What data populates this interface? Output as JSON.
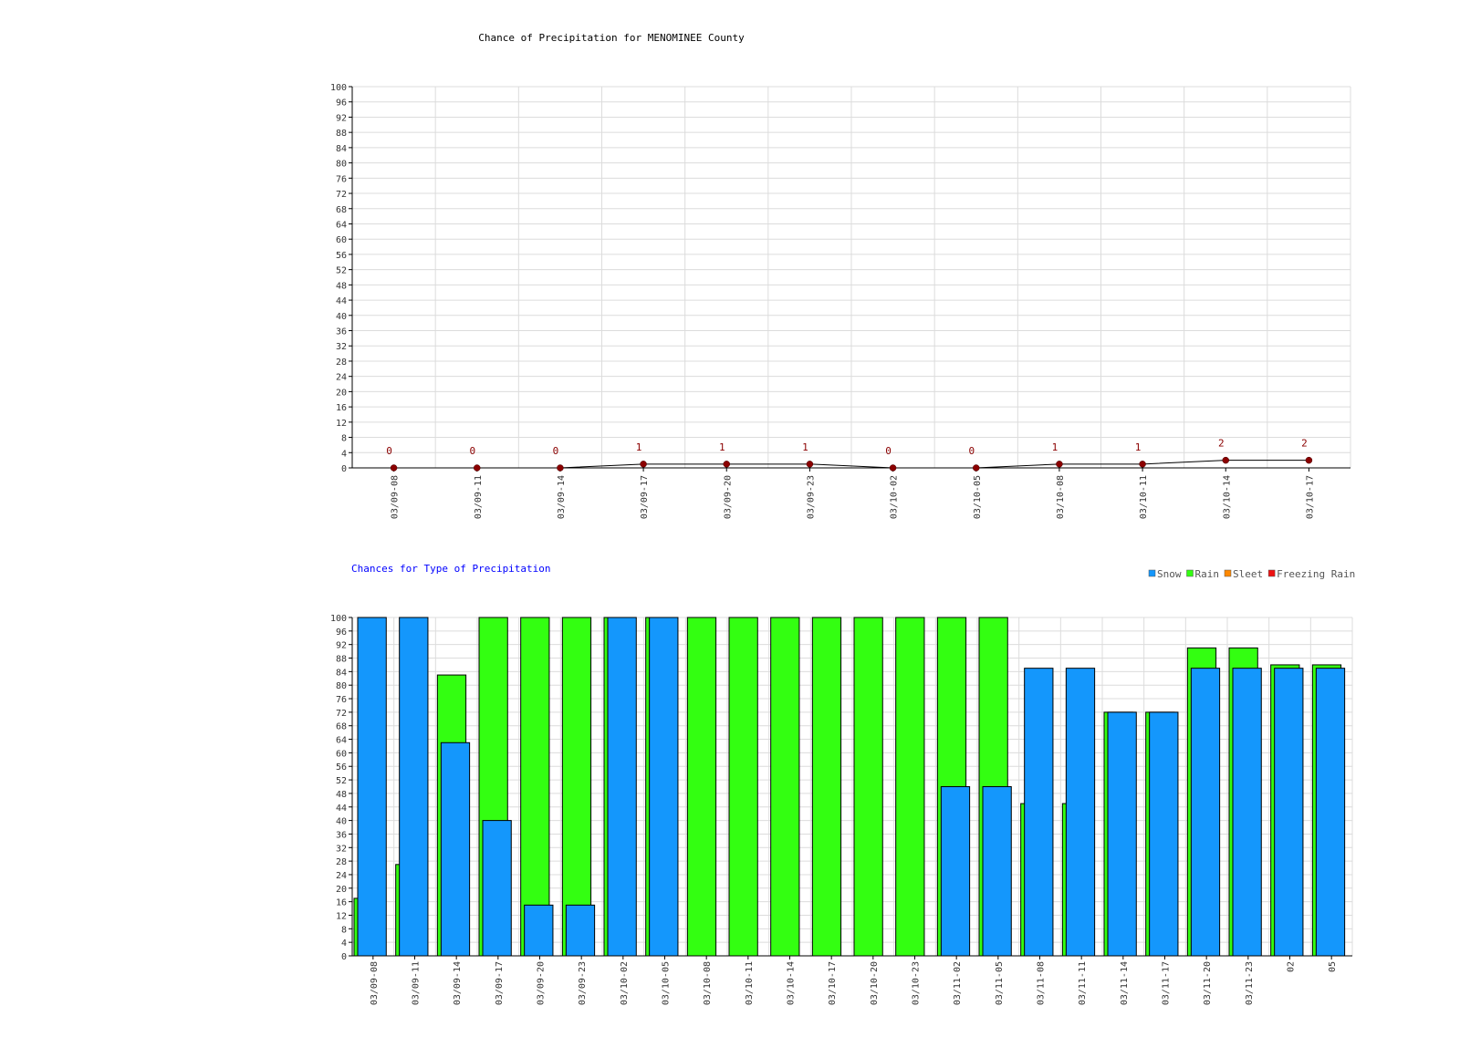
{
  "colors": {
    "grid": "#dcdcdc",
    "axis": "#000000",
    "tick_text": "#333333",
    "pop_line": "#000000",
    "pop_point": "#8b0000",
    "pop_label": "#8b0000",
    "snow": "#1497fc",
    "rain": "#33ff11",
    "sleet": "#ff8800",
    "freezing_rain": "#ee1111",
    "subtitle": "#0000ff"
  },
  "chart_data": [
    {
      "type": "line",
      "title": "Chance of Precipitation for MENOMINEE County",
      "xlabel": "",
      "ylabel": "",
      "ylim": [
        0,
        100
      ],
      "y_tick_step": 4,
      "grid": true,
      "x": [
        "03/09-08",
        "03/09-11",
        "03/09-14",
        "03/09-17",
        "03/09-20",
        "03/09-23",
        "03/10-02",
        "03/10-05",
        "03/10-08",
        "03/10-11",
        "03/10-14",
        "03/10-17"
      ],
      "y": [
        0,
        0,
        0,
        1,
        1,
        1,
        0,
        0,
        1,
        1,
        2,
        2
      ],
      "point_labels": [
        "0",
        "0",
        "0",
        "1",
        "1",
        "1",
        "0",
        "0",
        "1",
        "1",
        "2",
        "2"
      ]
    },
    {
      "type": "bar",
      "title": "Chances for Type of Precipitation",
      "xlabel": "",
      "ylabel": "",
      "ylim": [
        0,
        100
      ],
      "y_tick_step": 4,
      "grid": true,
      "legend_position": "top-right",
      "categories": [
        "03/09-08",
        "03/09-11",
        "03/09-14",
        "03/09-17",
        "03/09-20",
        "03/09-23",
        "03/10-02",
        "03/10-05",
        "03/10-08",
        "03/10-11",
        "03/10-14",
        "03/10-17",
        "03/10-20",
        "03/10-23",
        "03/11-02",
        "03/11-05",
        "03/11-08",
        "03/11-11",
        "03/11-14",
        "03/11-17",
        "03/11-20",
        "03/11-23",
        "02",
        "05"
      ],
      "series": [
        {
          "name": "Snow",
          "values": [
            100,
            100,
            63,
            40,
            15,
            15,
            100,
            100,
            0,
            0,
            0,
            0,
            0,
            0,
            50,
            50,
            85,
            85,
            72,
            72,
            85,
            85,
            85,
            85
          ]
        },
        {
          "name": "Rain",
          "values": [
            17,
            27,
            83,
            100,
            100,
            100,
            100,
            100,
            100,
            100,
            100,
            100,
            100,
            100,
            100,
            100,
            45,
            45,
            72,
            72,
            91,
            91,
            86,
            86
          ]
        },
        {
          "name": "Sleet",
          "values": [
            0,
            0,
            0,
            0,
            0,
            0,
            0,
            0,
            0,
            0,
            0,
            0,
            0,
            0,
            0,
            0,
            0,
            0,
            0,
            0,
            0,
            0,
            0,
            0
          ]
        },
        {
          "name": "Freezing Rain",
          "values": [
            0,
            0,
            0,
            0,
            0,
            0,
            0,
            0,
            0,
            0,
            0,
            0,
            0,
            0,
            0,
            0,
            0,
            0,
            0,
            0,
            0,
            0,
            0,
            0
          ]
        }
      ]
    }
  ]
}
